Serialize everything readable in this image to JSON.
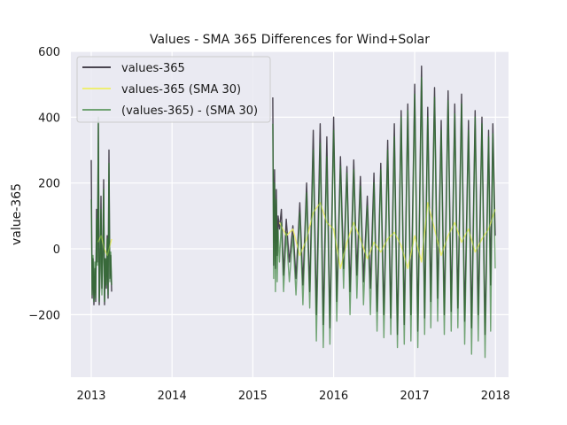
{
  "chart_data": {
    "type": "line",
    "title": "Values - SMA 365 Differences for Wind+Solar",
    "xlabel": "",
    "ylabel": "value-365",
    "xlim": [
      "2012-10-01",
      "2018-03-01"
    ],
    "ylim": [
      -390,
      600
    ],
    "x_ticks": [
      "2013",
      "2014",
      "2015",
      "2016",
      "2017",
      "2018"
    ],
    "y_ticks": [
      {
        "value": -200,
        "label": "−200"
      },
      {
        "value": 0,
        "label": "0"
      },
      {
        "value": 200,
        "label": "200"
      },
      {
        "value": 400,
        "label": "400"
      },
      {
        "value": 600,
        "label": "600"
      }
    ],
    "grid": true,
    "legend_position": "top-left",
    "background_color": "#eaeaf2",
    "series": [
      {
        "name": "values-365",
        "color": "#4a4550",
        "opacity": 1.0,
        "segments": [
          {
            "x": [
              "2013-01-01",
              "2013-01-05",
              "2013-01-09",
              "2013-01-13",
              "2013-01-17",
              "2013-01-21",
              "2013-01-25",
              "2013-01-29",
              "2013-02-02",
              "2013-02-06",
              "2013-02-10",
              "2013-02-14",
              "2013-02-18",
              "2013-02-22",
              "2013-02-26",
              "2013-03-02",
              "2013-03-06",
              "2013-03-10",
              "2013-03-14",
              "2013-03-18",
              "2013-03-22",
              "2013-03-26",
              "2013-03-30",
              "2013-04-03"
            ],
            "y": [
              270,
              -150,
              -30,
              -170,
              -60,
              -160,
              120,
              -40,
              380,
              -170,
              -60,
              160,
              -120,
              -20,
              210,
              -170,
              -30,
              -120,
              40,
              -150,
              300,
              -90,
              -20,
              -130
            ]
          },
          {
            "x": [
              "2015-04-01",
              "2015-04-05",
              "2015-04-09",
              "2015-04-13",
              "2015-04-17",
              "2015-04-21",
              "2015-04-25",
              "2015-05-01",
              "2015-05-10",
              "2015-05-20",
              "2015-06-01",
              "2015-06-15",
              "2015-07-01",
              "2015-07-15",
              "2015-08-01",
              "2015-08-15",
              "2015-09-01",
              "2015-09-15",
              "2015-10-01",
              "2015-10-15",
              "2015-11-01",
              "2015-11-15",
              "2015-12-01",
              "2015-12-15",
              "2016-01-01",
              "2016-01-15",
              "2016-02-01",
              "2016-02-15",
              "2016-03-01",
              "2016-03-15",
              "2016-04-01",
              "2016-04-15",
              "2016-05-01",
              "2016-05-15",
              "2016-06-01",
              "2016-06-15",
              "2016-07-01",
              "2016-07-15",
              "2016-08-01",
              "2016-08-15",
              "2016-09-01",
              "2016-09-15",
              "2016-10-01",
              "2016-10-15",
              "2016-11-01",
              "2016-11-15",
              "2016-12-01",
              "2016-12-15",
              "2017-01-01",
              "2017-01-15",
              "2017-02-01",
              "2017-02-15",
              "2017-03-01",
              "2017-03-15",
              "2017-04-01",
              "2017-04-15",
              "2017-05-01",
              "2017-05-15",
              "2017-06-01",
              "2017-06-15",
              "2017-07-01",
              "2017-07-15",
              "2017-08-01",
              "2017-08-15",
              "2017-09-01",
              "2017-09-15",
              "2017-10-01",
              "2017-10-15",
              "2017-11-01",
              "2017-11-15",
              "2017-12-01",
              "2017-12-10",
              "2017-12-20",
              "2017-12-31"
            ],
            "y": [
              460,
              -50,
              240,
              -60,
              180,
              -20,
              100,
              60,
              120,
              -80,
              90,
              -40,
              70,
              -90,
              140,
              -110,
              200,
              -130,
              360,
              -200,
              380,
              -230,
              340,
              -240,
              400,
              -160,
              280,
              -60,
              250,
              -130,
              270,
              -80,
              220,
              -100,
              160,
              -120,
              230,
              -190,
              260,
              -200,
              330,
              -210,
              380,
              -260,
              420,
              -230,
              440,
              -200,
              500,
              -250,
              555,
              -210,
              430,
              -160,
              490,
              -150,
              390,
              -200,
              480,
              -190,
              440,
              -180,
              470,
              -220,
              390,
              -240,
              420,
              -200,
              400,
              -260,
              360,
              -110,
              380,
              40
            ]
          }
        ]
      },
      {
        "name": "values-365 (SMA 30)",
        "color": "#eeee66",
        "opacity": 0.9,
        "segments": [
          {
            "x": [
              "2013-02-01",
              "2013-02-15",
              "2013-03-01",
              "2013-03-15",
              "2013-04-03"
            ],
            "y": [
              20,
              40,
              0,
              -20,
              30
            ]
          },
          {
            "x": [
              "2015-05-01",
              "2015-06-01",
              "2015-07-01",
              "2015-08-01",
              "2015-09-01",
              "2015-10-01",
              "2015-11-01",
              "2015-12-01",
              "2016-01-01",
              "2016-02-01",
              "2016-03-01",
              "2016-04-01",
              "2016-05-01",
              "2016-06-01",
              "2016-07-01",
              "2016-08-01",
              "2016-09-01",
              "2016-10-01",
              "2016-11-01",
              "2016-12-01",
              "2017-01-01",
              "2017-02-01",
              "2017-03-01",
              "2017-04-01",
              "2017-05-01",
              "2017-06-01",
              "2017-07-01",
              "2017-08-01",
              "2017-09-01",
              "2017-10-01",
              "2017-11-01",
              "2017-12-01",
              "2017-12-31"
            ],
            "y": [
              80,
              40,
              60,
              -20,
              30,
              110,
              140,
              80,
              60,
              -60,
              20,
              80,
              30,
              -30,
              20,
              -10,
              30,
              50,
              10,
              -60,
              40,
              -40,
              140,
              60,
              -20,
              40,
              80,
              20,
              60,
              -10,
              30,
              60,
              120
            ]
          }
        ]
      },
      {
        "name": "(values-365) - (SMA 30)",
        "color": "#2e7d2e",
        "opacity": 0.65,
        "segments": [
          {
            "x": [
              "2013-01-01",
              "2013-01-05",
              "2013-01-09",
              "2013-01-13",
              "2013-01-17",
              "2013-01-21",
              "2013-01-25",
              "2013-01-29",
              "2013-02-02",
              "2013-02-06",
              "2013-02-10",
              "2013-02-14",
              "2013-02-18",
              "2013-02-22",
              "2013-02-26",
              "2013-03-02",
              "2013-03-06",
              "2013-03-10",
              "2013-03-14",
              "2013-03-18",
              "2013-03-22",
              "2013-03-26",
              "2013-03-30",
              "2013-04-03"
            ],
            "y": [
              150,
              -140,
              -20,
              -160,
              -40,
              -150,
              90,
              -50,
              400,
              -160,
              -80,
              120,
              -140,
              -40,
              180,
              -160,
              -30,
              -110,
              30,
              -140,
              260,
              -100,
              -10,
              -110
            ]
          },
          {
            "x": [
              "2015-04-01",
              "2015-04-05",
              "2015-04-09",
              "2015-04-13",
              "2015-04-17",
              "2015-04-21",
              "2015-04-25",
              "2015-05-01",
              "2015-05-10",
              "2015-05-20",
              "2015-06-01",
              "2015-06-15",
              "2015-07-01",
              "2015-07-15",
              "2015-08-01",
              "2015-08-15",
              "2015-09-01",
              "2015-09-15",
              "2015-10-01",
              "2015-10-15",
              "2015-11-01",
              "2015-11-15",
              "2015-12-01",
              "2015-12-15",
              "2016-01-01",
              "2016-01-15",
              "2016-02-01",
              "2016-02-15",
              "2016-03-01",
              "2016-03-15",
              "2016-04-01",
              "2016-04-15",
              "2016-05-01",
              "2016-05-15",
              "2016-06-01",
              "2016-06-15",
              "2016-07-01",
              "2016-07-15",
              "2016-08-01",
              "2016-08-15",
              "2016-09-01",
              "2016-09-15",
              "2016-10-01",
              "2016-10-15",
              "2016-11-01",
              "2016-11-15",
              "2016-12-01",
              "2016-12-15",
              "2017-01-01",
              "2017-01-15",
              "2017-02-01",
              "2017-02-15",
              "2017-03-01",
              "2017-03-15",
              "2017-04-01",
              "2017-04-15",
              "2017-05-01",
              "2017-05-15",
              "2017-06-01",
              "2017-06-15",
              "2017-07-01",
              "2017-07-15",
              "2017-08-01",
              "2017-08-15",
              "2017-09-01",
              "2017-09-15",
              "2017-10-01",
              "2017-10-15",
              "2017-11-01",
              "2017-11-15",
              "2017-12-01",
              "2017-12-10",
              "2017-12-20",
              "2017-12-31"
            ],
            "y": [
              380,
              -90,
              200,
              -130,
              150,
              -100,
              60,
              -40,
              80,
              -130,
              50,
              -100,
              40,
              -140,
              110,
              -170,
              170,
              -180,
              300,
              -280,
              320,
              -300,
              280,
              -290,
              360,
              -220,
              250,
              -120,
              230,
              -200,
              240,
              -150,
              190,
              -170,
              130,
              -200,
              200,
              -250,
              240,
              -270,
              300,
              -260,
              340,
              -300,
              400,
              -290,
              420,
              -280,
              470,
              -300,
              520,
              -260,
              400,
              -240,
              460,
              -220,
              360,
              -260,
              450,
              -250,
              410,
              -240,
              440,
              -290,
              360,
              -320,
              400,
              -280,
              380,
              -330,
              340,
              -250,
              350,
              -60
            ]
          }
        ]
      }
    ]
  }
}
